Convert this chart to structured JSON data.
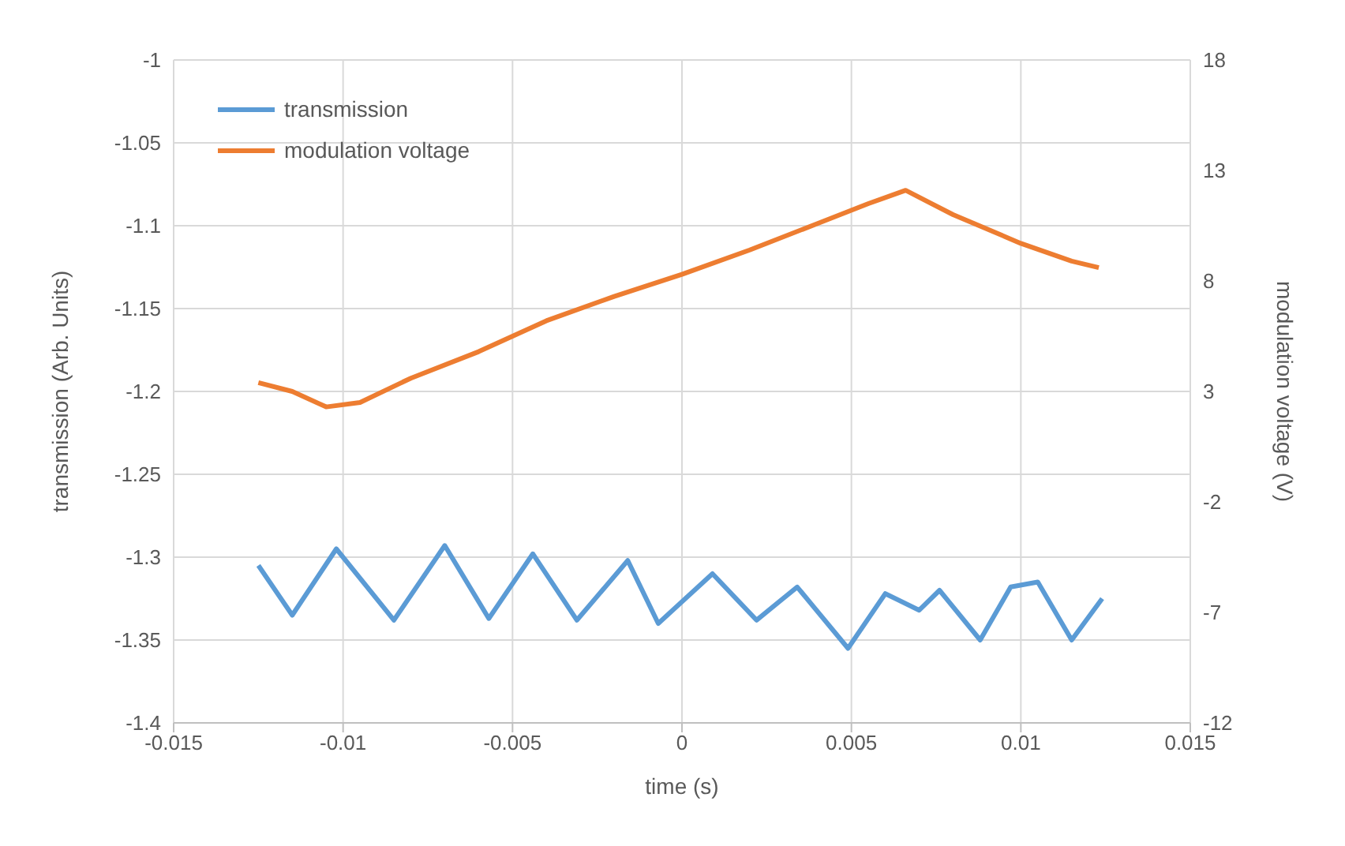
{
  "chart_data": {
    "type": "line",
    "xlabel": "time (s)",
    "ylabel": "transmission (Arb. Units)",
    "y2label": "modulation voltage (V)",
    "xlim": [
      -0.015,
      0.015
    ],
    "xticks": [
      -0.015,
      -0.01,
      -0.005,
      0,
      0.005,
      0.01,
      0.015
    ],
    "ylim": [
      -1.4,
      -1
    ],
    "yticks": [
      -1.4,
      -1.35,
      -1.3,
      -1.25,
      -1.2,
      -1.15,
      -1.1,
      -1.05,
      -1
    ],
    "y2lim": [
      -12,
      18
    ],
    "y2ticks": [
      -12,
      -7,
      -2,
      3,
      8,
      13,
      18
    ],
    "grid": true,
    "legend": "top left",
    "marker": "none",
    "line_style": "solid",
    "series": [
      {
        "name": "transmission",
        "color": "#5b9bd5",
        "x": [
          -0.0125,
          -0.0115,
          -0.0102,
          -0.0085,
          -0.007,
          -0.0057,
          -0.0044,
          -0.0031,
          -0.0016,
          -0.0007,
          0.0009,
          0.0022,
          0.0034,
          0.0049,
          0.006,
          0.007,
          0.0076,
          0.0088,
          0.0097,
          0.0105,
          0.0115,
          0.0124
        ],
        "values": [
          -1.305,
          -1.335,
          -1.295,
          -1.338,
          -1.293,
          -1.337,
          -1.298,
          -1.338,
          -1.302,
          -1.34,
          -1.31,
          -1.338,
          -1.318,
          -1.355,
          -1.322,
          -1.332,
          -1.32,
          -1.35,
          -1.318,
          -1.315,
          -1.35,
          -1.325
        ]
      },
      {
        "name": "modulation voltage",
        "color": "#ed7d31",
        "axis": "y2",
        "x": [
          -0.0125,
          -0.0115,
          -0.0105,
          -0.0095,
          -0.008,
          -0.006,
          -0.004,
          -0.002,
          0,
          0.002,
          0.004,
          0.0055,
          0.0066,
          0.008,
          0.01,
          0.0115,
          0.0123
        ],
        "values": [
          3.4,
          3.0,
          2.3,
          2.5,
          3.6,
          4.8,
          6.2,
          7.3,
          8.3,
          9.4,
          10.6,
          11.5,
          12.1,
          11.0,
          9.7,
          8.9,
          8.6
        ]
      }
    ]
  }
}
